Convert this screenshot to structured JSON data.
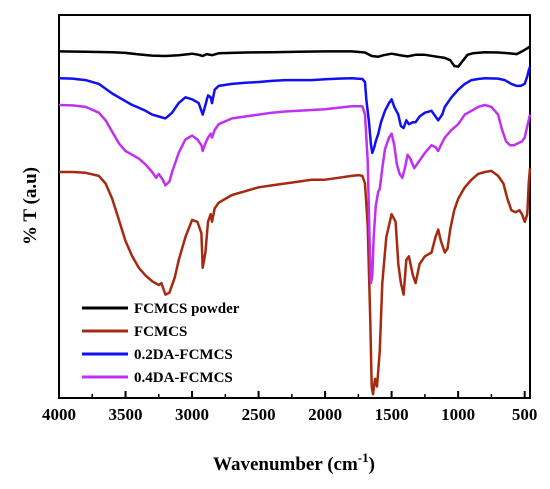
{
  "chart_data": {
    "type": "line",
    "xlabel": "Wavenumber (cm",
    "xlabel_sup": "-1",
    "xlabel_end": ")",
    "ylabel": "% T (a.u)",
    "xlim": [
      4000,
      460
    ],
    "ylim": [
      0,
      100
    ],
    "x_reversed": true,
    "x_ticks": [
      4000,
      3500,
      3000,
      2500,
      2000,
      1500,
      1000,
      500
    ],
    "grid": false,
    "legend_position": "bottom-left",
    "series": [
      {
        "name": "FCMCS powder",
        "color": "#000000",
        "points": [
          [
            4000,
            90.5
          ],
          [
            3800,
            90.4
          ],
          [
            3600,
            90.3
          ],
          [
            3500,
            90.1
          ],
          [
            3400,
            89.7
          ],
          [
            3300,
            89.4
          ],
          [
            3200,
            89.3
          ],
          [
            3100,
            89.5
          ],
          [
            3000,
            89.9
          ],
          [
            2950,
            89.6
          ],
          [
            2920,
            89.3
          ],
          [
            2890,
            89.8
          ],
          [
            2850,
            89.5
          ],
          [
            2800,
            90.0
          ],
          [
            2600,
            90.2
          ],
          [
            2400,
            90.3
          ],
          [
            2200,
            90.4
          ],
          [
            2000,
            90.5
          ],
          [
            1800,
            90.5
          ],
          [
            1700,
            90.2
          ],
          [
            1650,
            89.3
          ],
          [
            1600,
            89.1
          ],
          [
            1560,
            89.5
          ],
          [
            1500,
            89.9
          ],
          [
            1420,
            89.4
          ],
          [
            1380,
            89.2
          ],
          [
            1320,
            89.6
          ],
          [
            1250,
            89.6
          ],
          [
            1160,
            89.1
          ],
          [
            1100,
            88.8
          ],
          [
            1060,
            88.2
          ],
          [
            1030,
            86.7
          ],
          [
            1000,
            86.5
          ],
          [
            970,
            87.8
          ],
          [
            930,
            89.6
          ],
          [
            890,
            90.0
          ],
          [
            800,
            90.3
          ],
          [
            700,
            90.2
          ],
          [
            620,
            90.0
          ],
          [
            560,
            89.8
          ],
          [
            520,
            90.5
          ],
          [
            480,
            91.3
          ],
          [
            460,
            91.8
          ]
        ]
      },
      {
        "name": "FCMCS",
        "color": "#a52a10",
        "points": [
          [
            4000,
            59.0
          ],
          [
            3900,
            59.0
          ],
          [
            3800,
            58.8
          ],
          [
            3700,
            58.0
          ],
          [
            3650,
            56.0
          ],
          [
            3600,
            52.0
          ],
          [
            3550,
            46.5
          ],
          [
            3500,
            41.0
          ],
          [
            3450,
            37.0
          ],
          [
            3400,
            34.0
          ],
          [
            3350,
            32.0
          ],
          [
            3300,
            30.5
          ],
          [
            3250,
            29.5
          ],
          [
            3230,
            30.0
          ],
          [
            3200,
            27.0
          ],
          [
            3170,
            27.5
          ],
          [
            3130,
            31.5
          ],
          [
            3100,
            36.0
          ],
          [
            3050,
            42.0
          ],
          [
            3000,
            46.5
          ],
          [
            2960,
            46.0
          ],
          [
            2930,
            43.0
          ],
          [
            2920,
            34.0
          ],
          [
            2900,
            38.0
          ],
          [
            2880,
            46.0
          ],
          [
            2860,
            48.0
          ],
          [
            2850,
            46.0
          ],
          [
            2830,
            49.5
          ],
          [
            2800,
            51.0
          ],
          [
            2700,
            53.0
          ],
          [
            2600,
            54.0
          ],
          [
            2500,
            55.0
          ],
          [
            2400,
            55.5
          ],
          [
            2300,
            56.0
          ],
          [
            2200,
            56.5
          ],
          [
            2100,
            57.0
          ],
          [
            2000,
            57.0
          ],
          [
            1900,
            57.5
          ],
          [
            1800,
            58.0
          ],
          [
            1750,
            58.2
          ],
          [
            1720,
            58.0
          ],
          [
            1700,
            56.0
          ],
          [
            1680,
            45.0
          ],
          [
            1660,
            20.0
          ],
          [
            1650,
            3.0
          ],
          [
            1640,
            1.0
          ],
          [
            1625,
            5.0
          ],
          [
            1610,
            3.0
          ],
          [
            1590,
            12.0
          ],
          [
            1570,
            30.0
          ],
          [
            1540,
            42.0
          ],
          [
            1500,
            48.0
          ],
          [
            1470,
            46.0
          ],
          [
            1450,
            35.0
          ],
          [
            1430,
            30.0
          ],
          [
            1410,
            27.0
          ],
          [
            1390,
            36.0
          ],
          [
            1370,
            37.0
          ],
          [
            1340,
            32.0
          ],
          [
            1320,
            30.0
          ],
          [
            1290,
            35.0
          ],
          [
            1250,
            37.0
          ],
          [
            1200,
            38.0
          ],
          [
            1170,
            42.0
          ],
          [
            1150,
            44.0
          ],
          [
            1130,
            41.0
          ],
          [
            1100,
            38.0
          ],
          [
            1080,
            39.0
          ],
          [
            1060,
            44.0
          ],
          [
            1030,
            49.0
          ],
          [
            1000,
            52.0
          ],
          [
            950,
            55.0
          ],
          [
            900,
            57.0
          ],
          [
            850,
            58.5
          ],
          [
            800,
            59.0
          ],
          [
            750,
            59.3
          ],
          [
            700,
            58.0
          ],
          [
            660,
            56.0
          ],
          [
            630,
            52.0
          ],
          [
            600,
            49.0
          ],
          [
            570,
            48.5
          ],
          [
            540,
            49.0
          ],
          [
            520,
            48.0
          ],
          [
            500,
            46.0
          ],
          [
            480,
            48.0
          ],
          [
            470,
            56.0
          ],
          [
            460,
            60.0
          ]
        ]
      },
      {
        "name": "0.2DA-FCMCS",
        "color": "#1010f0",
        "points": [
          [
            4000,
            83.5
          ],
          [
            3900,
            83.4
          ],
          [
            3800,
            83.0
          ],
          [
            3700,
            82.0
          ],
          [
            3600,
            79.5
          ],
          [
            3500,
            77.5
          ],
          [
            3450,
            76.5
          ],
          [
            3400,
            75.8
          ],
          [
            3350,
            75.0
          ],
          [
            3300,
            74.0
          ],
          [
            3250,
            73.5
          ],
          [
            3200,
            73.0
          ],
          [
            3150,
            74.5
          ],
          [
            3100,
            77.0
          ],
          [
            3050,
            78.5
          ],
          [
            3000,
            78.0
          ],
          [
            2950,
            77.0
          ],
          [
            2920,
            74.0
          ],
          [
            2900,
            76.5
          ],
          [
            2880,
            79.0
          ],
          [
            2860,
            78.5
          ],
          [
            2850,
            77.0
          ],
          [
            2830,
            80.5
          ],
          [
            2800,
            81.5
          ],
          [
            2700,
            82.0
          ],
          [
            2600,
            82.3
          ],
          [
            2500,
            82.5
          ],
          [
            2400,
            82.8
          ],
          [
            2300,
            83.0
          ],
          [
            2200,
            83.0
          ],
          [
            2100,
            83.0
          ],
          [
            2000,
            83.2
          ],
          [
            1900,
            83.4
          ],
          [
            1800,
            83.5
          ],
          [
            1720,
            83.3
          ],
          [
            1700,
            82.5
          ],
          [
            1690,
            78.0
          ],
          [
            1670,
            72.0
          ],
          [
            1655,
            66.0
          ],
          [
            1645,
            64.0
          ],
          [
            1630,
            65.5
          ],
          [
            1620,
            67.0
          ],
          [
            1600,
            69.0
          ],
          [
            1580,
            72.0
          ],
          [
            1550,
            75.0
          ],
          [
            1520,
            77.0
          ],
          [
            1500,
            78.0
          ],
          [
            1480,
            76.0
          ],
          [
            1450,
            74.0
          ],
          [
            1430,
            71.0
          ],
          [
            1410,
            70.5
          ],
          [
            1390,
            72.5
          ],
          [
            1370,
            71.5
          ],
          [
            1340,
            72.0
          ],
          [
            1320,
            72.0
          ],
          [
            1290,
            73.5
          ],
          [
            1250,
            74.5
          ],
          [
            1200,
            75.0
          ],
          [
            1170,
            73.5
          ],
          [
            1150,
            72.5
          ],
          [
            1120,
            74.0
          ],
          [
            1100,
            76.0
          ],
          [
            1050,
            78.5
          ],
          [
            1000,
            80.5
          ],
          [
            950,
            82.0
          ],
          [
            900,
            83.0
          ],
          [
            850,
            83.3
          ],
          [
            800,
            83.5
          ],
          [
            700,
            83.4
          ],
          [
            650,
            83.0
          ],
          [
            600,
            82.0
          ],
          [
            560,
            81.5
          ],
          [
            530,
            81.5
          ],
          [
            500,
            82.0
          ],
          [
            480,
            84.0
          ],
          [
            470,
            85.5
          ],
          [
            460,
            86.5
          ]
        ]
      },
      {
        "name": "0.4DA-FCMCS",
        "color": "#c030f0",
        "points": [
          [
            4000,
            76.5
          ],
          [
            3900,
            76.4
          ],
          [
            3800,
            76.0
          ],
          [
            3700,
            74.5
          ],
          [
            3650,
            72.5
          ],
          [
            3600,
            69.5
          ],
          [
            3550,
            66.5
          ],
          [
            3500,
            64.5
          ],
          [
            3450,
            63.5
          ],
          [
            3400,
            62.5
          ],
          [
            3350,
            61.0
          ],
          [
            3300,
            59.0
          ],
          [
            3270,
            57.5
          ],
          [
            3250,
            58.5
          ],
          [
            3220,
            57.0
          ],
          [
            3200,
            55.5
          ],
          [
            3170,
            56.5
          ],
          [
            3150,
            59.0
          ],
          [
            3100,
            64.0
          ],
          [
            3050,
            67.5
          ],
          [
            3000,
            68.5
          ],
          [
            2960,
            67.5
          ],
          [
            2930,
            66.0
          ],
          [
            2920,
            64.5
          ],
          [
            2900,
            66.5
          ],
          [
            2880,
            68.0
          ],
          [
            2860,
            69.0
          ],
          [
            2850,
            68.0
          ],
          [
            2830,
            70.0
          ],
          [
            2800,
            71.5
          ],
          [
            2700,
            73.0
          ],
          [
            2600,
            73.5
          ],
          [
            2500,
            74.0
          ],
          [
            2400,
            74.5
          ],
          [
            2300,
            74.8
          ],
          [
            2200,
            75.0
          ],
          [
            2100,
            75.2
          ],
          [
            2000,
            75.4
          ],
          [
            1900,
            75.8
          ],
          [
            1800,
            76.2
          ],
          [
            1720,
            76.2
          ],
          [
            1700,
            74.0
          ],
          [
            1680,
            62.0
          ],
          [
            1665,
            40.0
          ],
          [
            1655,
            30.0
          ],
          [
            1645,
            32.0
          ],
          [
            1635,
            42.0
          ],
          [
            1620,
            50.0
          ],
          [
            1600,
            54.0
          ],
          [
            1590,
            54.5
          ],
          [
            1570,
            60.0
          ],
          [
            1550,
            65.0
          ],
          [
            1520,
            68.0
          ],
          [
            1500,
            69.0
          ],
          [
            1480,
            66.0
          ],
          [
            1460,
            61.0
          ],
          [
            1440,
            58.5
          ],
          [
            1420,
            57.5
          ],
          [
            1400,
            60.0
          ],
          [
            1380,
            63.5
          ],
          [
            1360,
            62.5
          ],
          [
            1330,
            60.0
          ],
          [
            1300,
            61.5
          ],
          [
            1250,
            64.0
          ],
          [
            1200,
            66.0
          ],
          [
            1170,
            65.5
          ],
          [
            1150,
            64.5
          ],
          [
            1130,
            66.0
          ],
          [
            1100,
            68.0
          ],
          [
            1050,
            70.0
          ],
          [
            1000,
            71.5
          ],
          [
            950,
            74.0
          ],
          [
            900,
            75.0
          ],
          [
            850,
            76.0
          ],
          [
            800,
            76.5
          ],
          [
            750,
            76.0
          ],
          [
            700,
            74.0
          ],
          [
            670,
            70.0
          ],
          [
            640,
            67.0
          ],
          [
            610,
            66.0
          ],
          [
            580,
            66.0
          ],
          [
            550,
            66.5
          ],
          [
            520,
            67.0
          ],
          [
            500,
            68.0
          ],
          [
            480,
            71.0
          ],
          [
            460,
            74.0
          ]
        ]
      }
    ]
  }
}
